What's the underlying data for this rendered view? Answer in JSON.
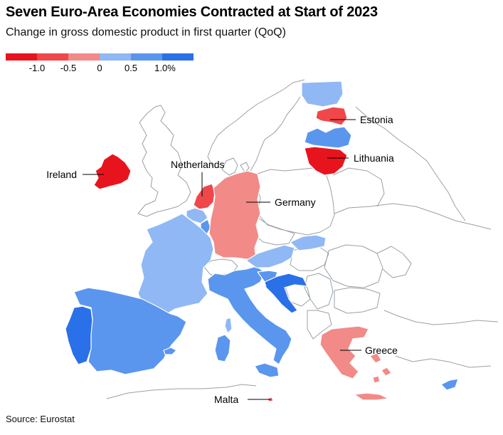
{
  "title": "Seven Euro-Area Economies Contracted at Start of 2023",
  "subtitle": "Change in gross domestic product in first quarter (QoQ)",
  "source": "Source: Eurostat",
  "legend": {
    "colors": [
      "#e8141d",
      "#f0474b",
      "#f28a88",
      "#8fb8f5",
      "#5a96ee",
      "#2a70e8"
    ],
    "ticks": [
      "-1.0",
      "-0.5",
      "0",
      "0.5",
      "1.0%"
    ]
  },
  "colors": {
    "border": "#ffffff",
    "land": "#ffffff",
    "outline": "#9aa0a6"
  },
  "countries": [
    {
      "name": "Ireland",
      "value_bin": "-1.0 or less",
      "color": "#e8141d",
      "labeled": true
    },
    {
      "name": "Netherlands",
      "value_bin": "-1.0 to -0.5",
      "color": "#f0474b",
      "labeled": true
    },
    {
      "name": "Germany",
      "value_bin": "-0.5 to 0",
      "color": "#f28a88",
      "labeled": true
    },
    {
      "name": "Estonia",
      "value_bin": "-1.0 to -0.5",
      "color": "#f0474b",
      "labeled": true
    },
    {
      "name": "Lithuania",
      "value_bin": "-1.0 or less",
      "color": "#e8141d",
      "labeled": true
    },
    {
      "name": "Greece",
      "value_bin": "-0.5 to 0",
      "color": "#f28a88",
      "labeled": true
    },
    {
      "name": "Malta",
      "value_bin": "-1.0 to -0.5",
      "color": "#f0474b",
      "labeled": true
    },
    {
      "name": "Latvia",
      "value_bin": "0.5 to 1.0",
      "color": "#5a96ee",
      "labeled": false
    },
    {
      "name": "Finland",
      "value_bin": "0 to 0.5",
      "color": "#8fb8f5",
      "labeled": false
    },
    {
      "name": "France",
      "value_bin": "0 to 0.5",
      "color": "#8fb8f5",
      "labeled": false
    },
    {
      "name": "Spain",
      "value_bin": "0.5 to 1.0",
      "color": "#5a96ee",
      "labeled": false
    },
    {
      "name": "Portugal",
      "value_bin": "1.0 or more",
      "color": "#2a70e8",
      "labeled": false
    },
    {
      "name": "Italy",
      "value_bin": "0.5 to 1.0",
      "color": "#5a96ee",
      "labeled": false
    },
    {
      "name": "Austria",
      "value_bin": "0 to 0.5",
      "color": "#8fb8f5",
      "labeled": false
    },
    {
      "name": "Slovakia",
      "value_bin": "0 to 0.5",
      "color": "#8fb8f5",
      "labeled": false
    },
    {
      "name": "Slovenia",
      "value_bin": "0.5 to 1.0",
      "color": "#5a96ee",
      "labeled": false
    },
    {
      "name": "Croatia",
      "value_bin": "1.0 or more",
      "color": "#2a70e8",
      "labeled": false
    },
    {
      "name": "Belgium",
      "value_bin": "0 to 0.5",
      "color": "#8fb8f5",
      "labeled": false
    },
    {
      "name": "Luxembourg",
      "value_bin": "0.5 to 1.0",
      "color": "#5a96ee",
      "labeled": false
    },
    {
      "name": "Cyprus",
      "value_bin": "0.5 to 1.0",
      "color": "#5a96ee",
      "labeled": false
    }
  ]
}
